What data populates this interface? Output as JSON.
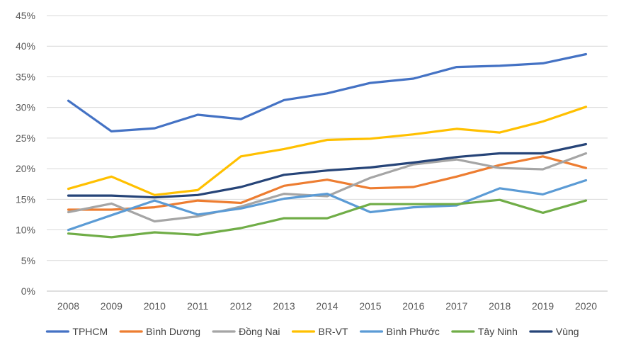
{
  "chart_data": {
    "type": "line",
    "x": [
      "2008",
      "2009",
      "2010",
      "2011",
      "2012",
      "2013",
      "2014",
      "2015",
      "2016",
      "2017",
      "2018",
      "2019",
      "2020"
    ],
    "ylim": [
      0,
      45
    ],
    "yticks": [
      0,
      5,
      10,
      15,
      20,
      25,
      30,
      35,
      40,
      45
    ],
    "ytick_labels": [
      "0%",
      "5%",
      "10%",
      "15%",
      "20%",
      "25%",
      "30%",
      "35%",
      "40%",
      "45%"
    ],
    "grid": true,
    "legend_position": "bottom",
    "series": [
      {
        "name": "TPHCM",
        "color": "#4472C4",
        "values": [
          31.1,
          26.1,
          26.6,
          28.8,
          28.1,
          31.2,
          32.3,
          34.0,
          34.7,
          36.6,
          36.8,
          37.2,
          38.7
        ]
      },
      {
        "name": "Bình Dương",
        "color": "#ED7D31",
        "values": [
          13.3,
          13.3,
          13.7,
          14.8,
          14.4,
          17.2,
          18.2,
          16.8,
          17.0,
          18.7,
          20.6,
          22.0,
          20.1
        ]
      },
      {
        "name": "Đồng Nai",
        "color": "#A5A5A5",
        "values": [
          12.9,
          14.3,
          11.4,
          12.2,
          13.8,
          15.9,
          15.5,
          18.5,
          20.7,
          21.5,
          20.1,
          19.9,
          22.5
        ]
      },
      {
        "name": "BR-VT",
        "color": "#FFC000",
        "values": [
          16.7,
          18.7,
          15.7,
          16.5,
          22.0,
          23.2,
          24.7,
          24.9,
          25.6,
          26.5,
          25.9,
          27.7,
          30.1
        ]
      },
      {
        "name": "Bình Phước",
        "color": "#5B9BD5",
        "values": [
          10.0,
          12.4,
          14.8,
          12.5,
          13.5,
          15.1,
          15.9,
          12.9,
          13.7,
          14.0,
          16.8,
          15.8,
          18.1
        ]
      },
      {
        "name": "Tây Ninh",
        "color": "#70AD47",
        "values": [
          9.4,
          8.8,
          9.6,
          9.2,
          10.3,
          11.9,
          11.9,
          14.2,
          14.2,
          14.2,
          14.9,
          12.8,
          14.8
        ]
      },
      {
        "name": "Vùng",
        "color": "#264478",
        "values": [
          15.6,
          15.6,
          15.3,
          15.7,
          17.0,
          19.0,
          19.7,
          20.2,
          21.0,
          21.9,
          22.5,
          22.5,
          24.0
        ]
      }
    ]
  }
}
